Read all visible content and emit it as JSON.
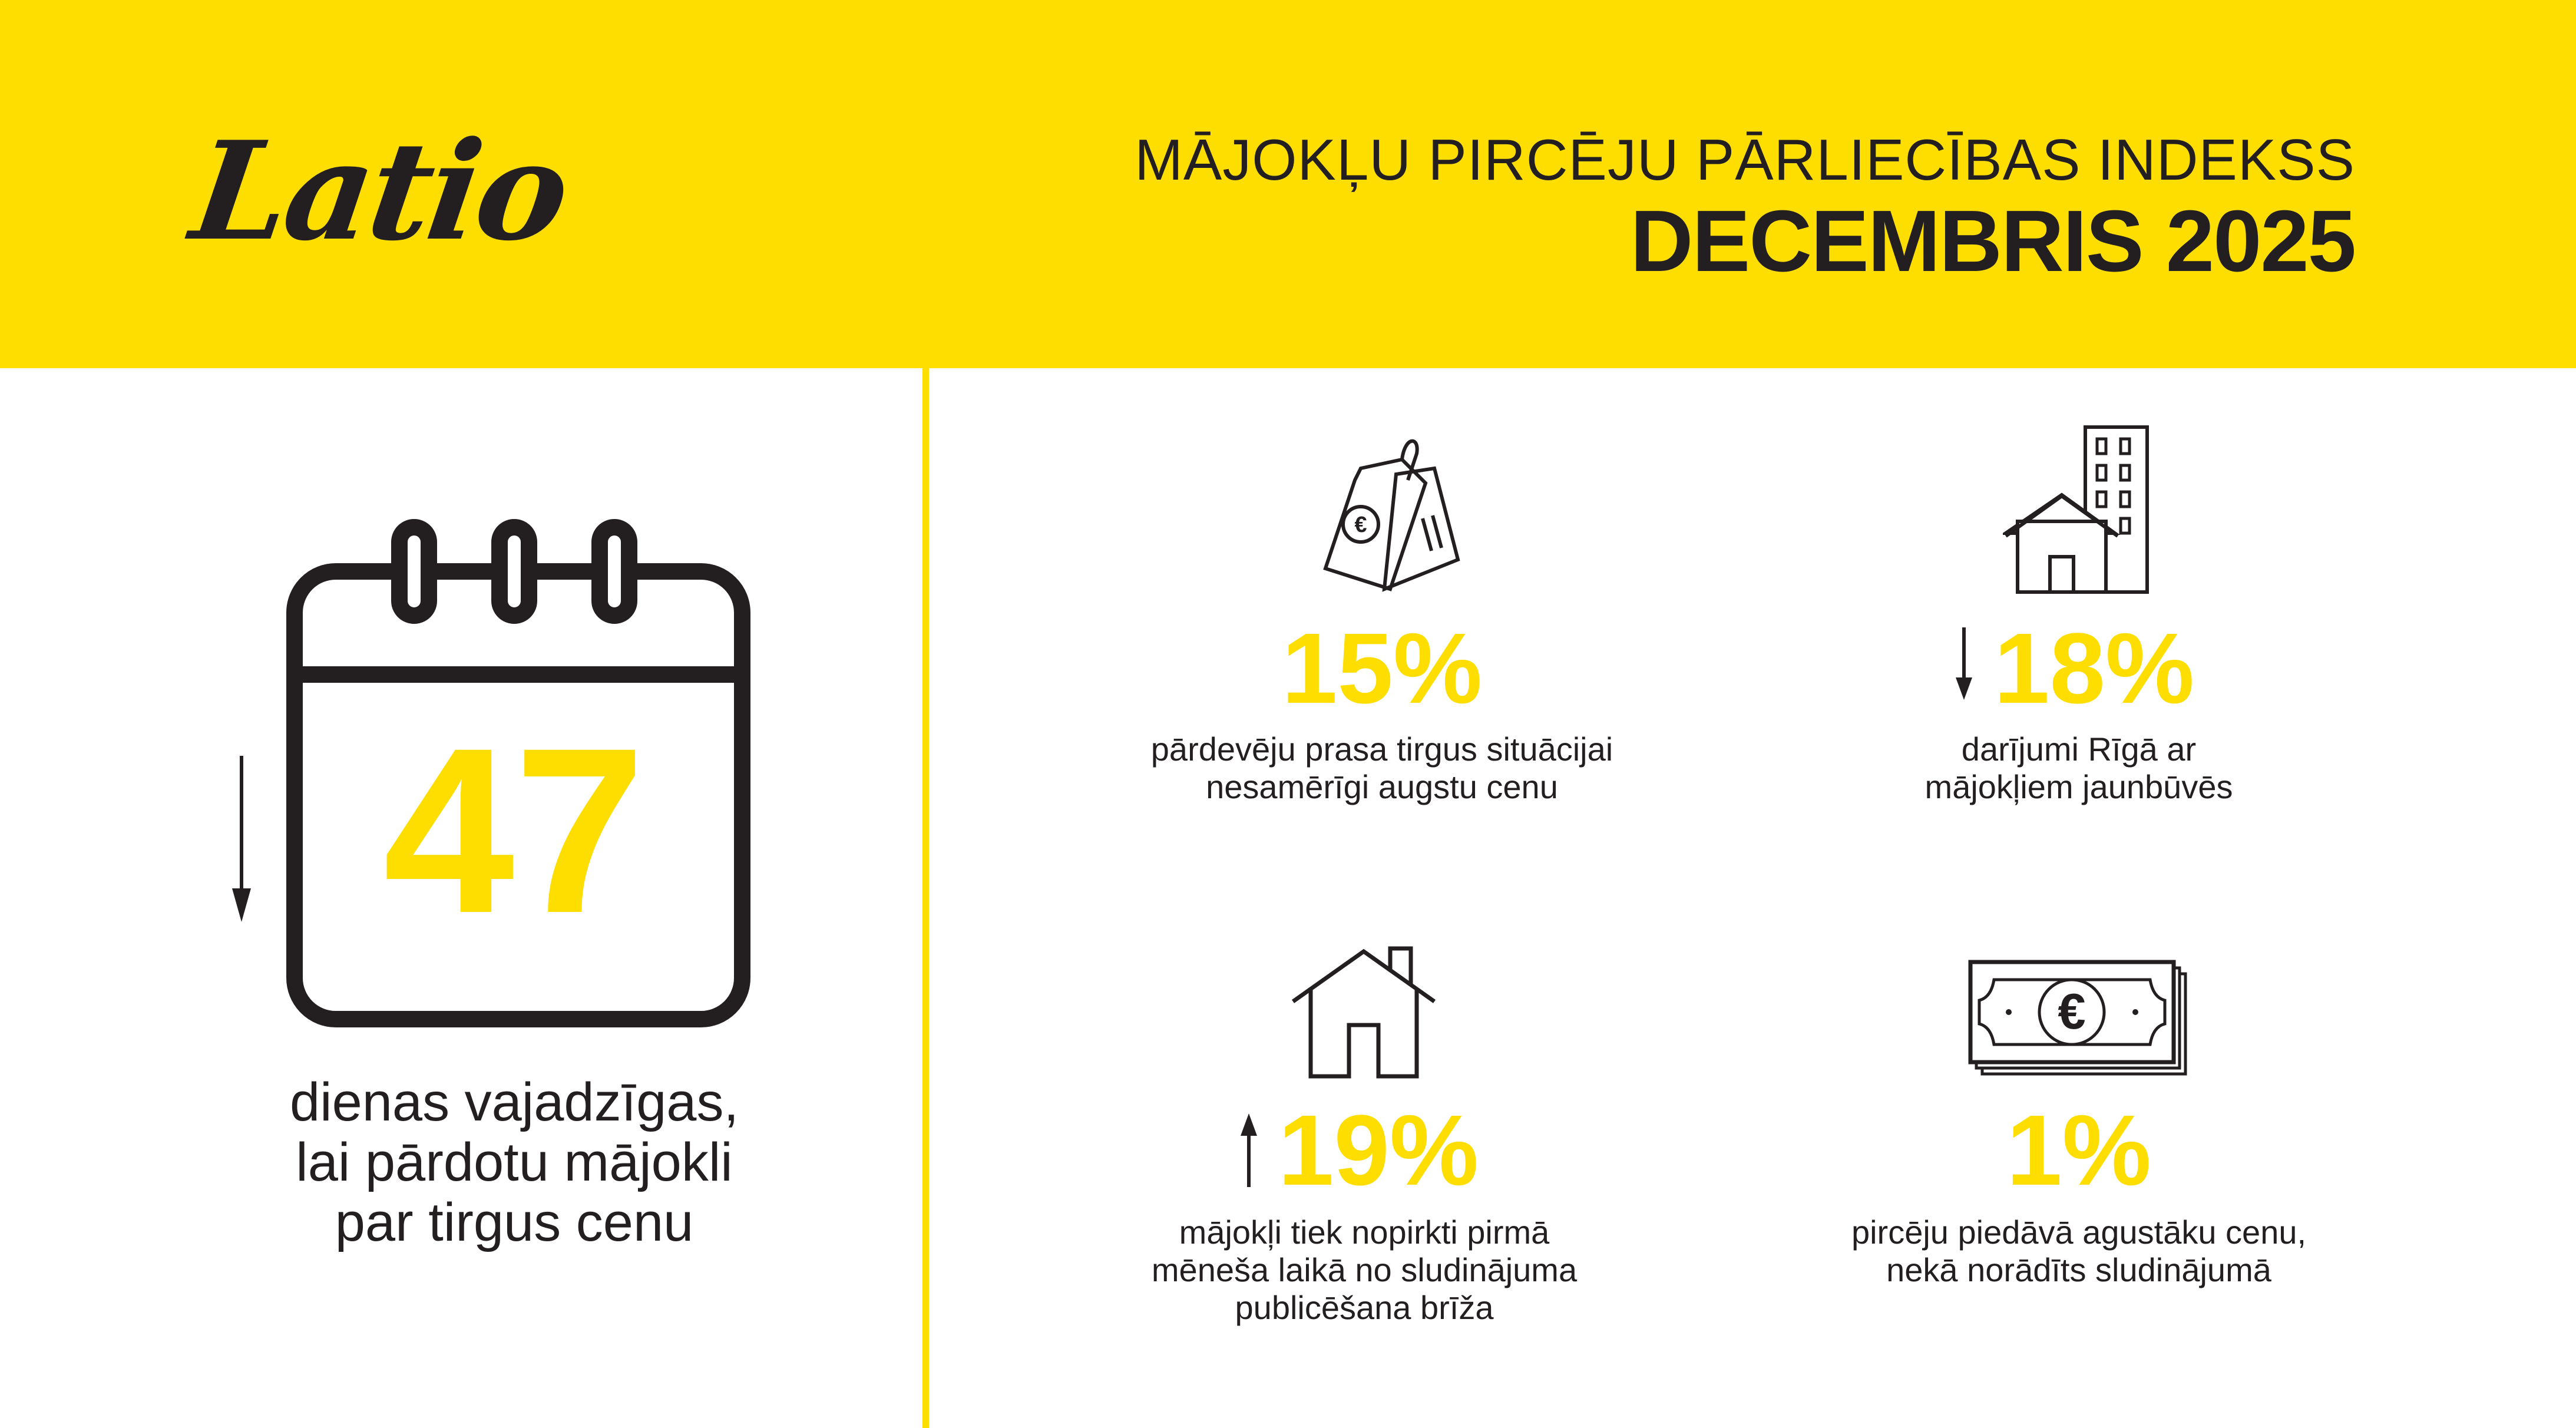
{
  "header": {
    "logo": "Latio",
    "title": "MĀJOKĻU PIRCĒJU PĀRLIECĪBAS INDEKSS",
    "period": "DECEMBRIS 2025"
  },
  "colors": {
    "accent": "#FDDE00",
    "text": "#231f20"
  },
  "left_panel": {
    "value": "47",
    "trend": "down",
    "icon": "calendar-icon",
    "lines": [
      "dienas vajadzīgas,",
      "lai pārdotu mājokli",
      "par tirgus cenu"
    ]
  },
  "stats": [
    {
      "value": "15%",
      "trend": "none",
      "icon": "price-tags-euro-icon",
      "lines": [
        "pārdevēju prasa tirgus situācijai",
        "nesamērīgi augstu cenu"
      ]
    },
    {
      "value": "18%",
      "trend": "down",
      "icon": "house-and-building-icon",
      "lines": [
        "darījumi Rīgā ar",
        "mājokļiem jaunbūvēs"
      ]
    },
    {
      "value": "19%",
      "trend": "up",
      "icon": "house-icon",
      "lines": [
        "mājokļi tiek nopirkti pirmā",
        "mēneša laikā no sludinājuma",
        "publicēšana brīža"
      ]
    },
    {
      "value": "1%",
      "trend": "none",
      "icon": "euro-banknotes-icon",
      "lines": [
        "pircēju piedāvā agustāku cenu,",
        "nekā norādīts sludinājumā"
      ]
    }
  ]
}
